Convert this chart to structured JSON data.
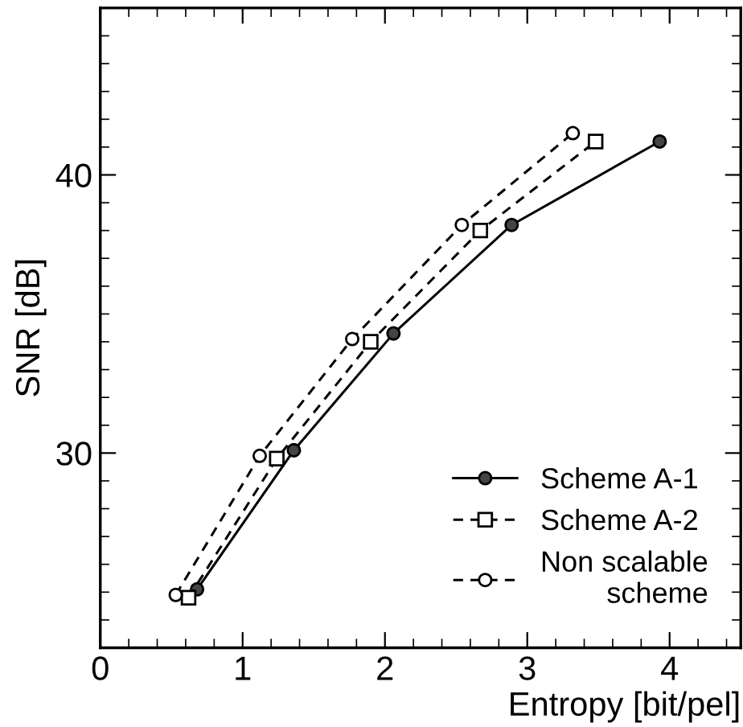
{
  "chart_data": {
    "type": "line",
    "xlabel": "Entropy [bit/pel]",
    "ylabel": "SNR [dB]",
    "xlim": [
      0,
      4.5
    ],
    "ylim": [
      23,
      46
    ],
    "xticks": [
      0,
      1,
      2,
      3,
      4
    ],
    "yticks": [
      30,
      40
    ],
    "grid": false,
    "legend": "bottom right",
    "series": [
      {
        "name": "Scheme A-1",
        "color": "#000000",
        "marker": "circle",
        "line_style": "solid",
        "x": [
          0.68,
          1.36,
          2.06,
          2.89,
          3.93
        ],
        "values": [
          25.1,
          30.1,
          34.3,
          38.2,
          41.2
        ]
      },
      {
        "name": "Scheme A-2",
        "color": "#000000",
        "marker": "square",
        "line_style": "dashed",
        "x": [
          0.62,
          1.24,
          1.9,
          2.67,
          3.48
        ],
        "values": [
          24.8,
          29.8,
          34.0,
          38.0,
          41.2
        ]
      },
      {
        "name": "Non scalable\nscheme",
        "color": "#000000",
        "marker": "circle_open",
        "line_style": "dashed",
        "x": [
          0.53,
          1.12,
          1.77,
          2.54,
          3.32
        ],
        "values": [
          24.9,
          29.9,
          34.1,
          38.2,
          41.5
        ]
      }
    ]
  }
}
